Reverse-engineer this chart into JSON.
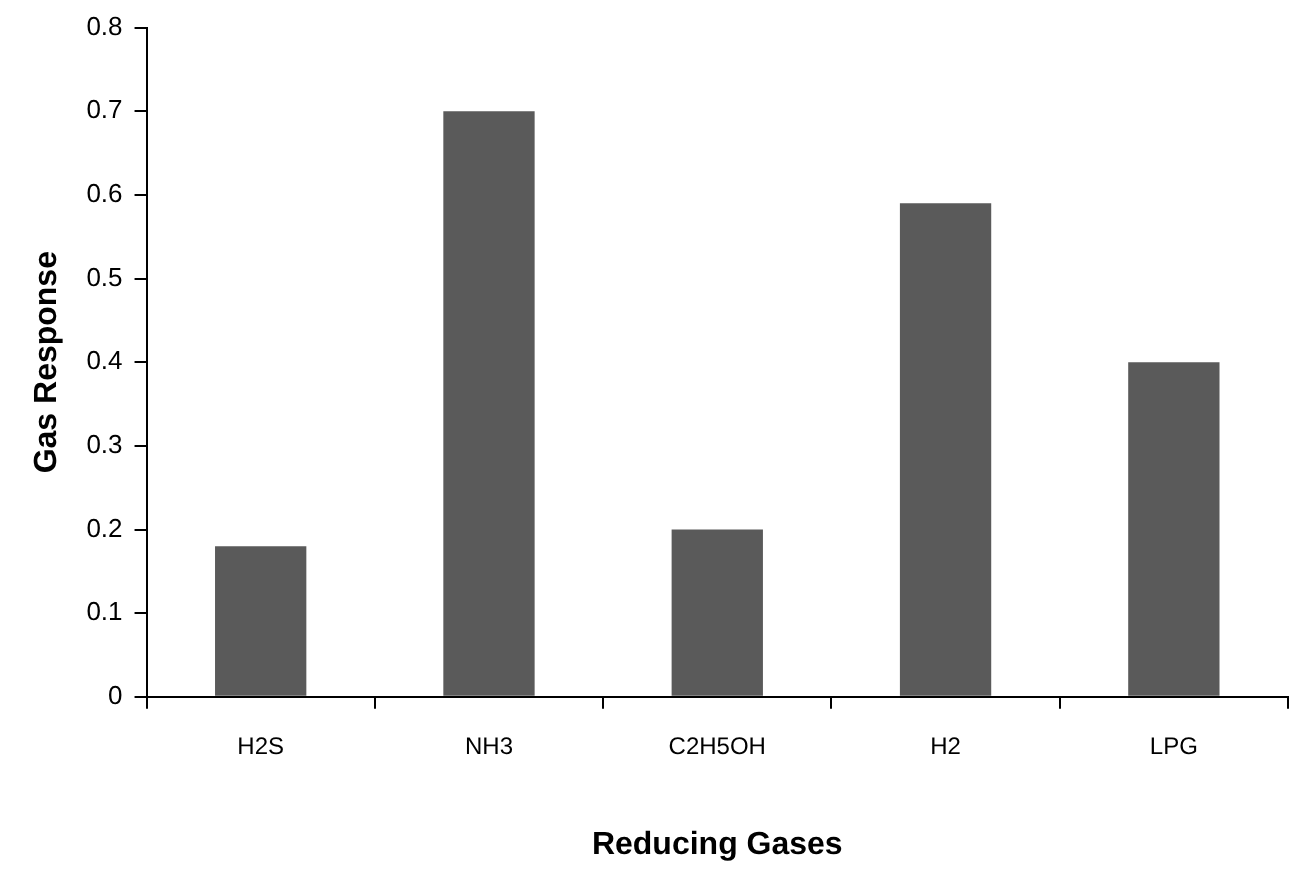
{
  "chart_data": {
    "type": "bar",
    "xlabel": "Reducing Gases",
    "ylabel": "Gas Response",
    "categories": [
      "H2S",
      "NH3",
      "C2H5OH",
      "H2",
      "LPG"
    ],
    "values": [
      0.18,
      0.7,
      0.2,
      0.59,
      0.4
    ],
    "color": "#5a5a5a",
    "ylim": [
      0,
      0.8
    ],
    "yticks": [
      0,
      0.1,
      0.2,
      0.3,
      0.4,
      0.5,
      0.6,
      0.7,
      0.8
    ],
    "grid": false,
    "legend": false
  }
}
